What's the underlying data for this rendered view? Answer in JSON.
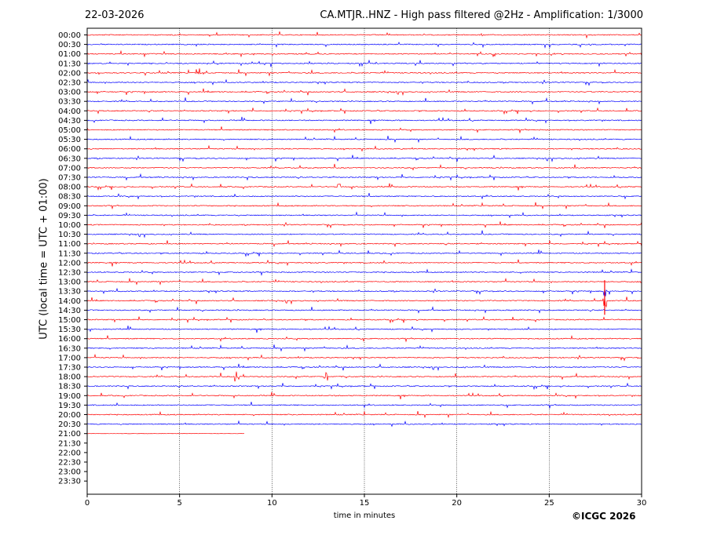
{
  "header": {
    "date": "22-03-2026",
    "title": "CA.MTJR..HNZ - High pass filtered @2Hz - Amplification: 1/3000"
  },
  "footer": {
    "copyright": "©ICGC 2026"
  },
  "colors": {
    "trace_red": "#ff0000",
    "trace_blue": "#0000ff",
    "axis": "#000000"
  },
  "chart_data": {
    "type": "helicorder",
    "title": "CA.MTJR..HNZ - High pass filtered @2Hz - Amplification: 1/3000",
    "xlabel": "time in minutes",
    "ylabel": "UTC (local time = UTC + 01:00)",
    "xlim": [
      0,
      30
    ],
    "x_ticks": [
      0,
      5,
      10,
      15,
      20,
      25,
      30
    ],
    "vertical_gridlines_at": [
      5,
      10,
      15,
      20,
      25
    ],
    "rows": [
      "00:00",
      "00:30",
      "01:00",
      "01:30",
      "02:00",
      "02:30",
      "03:00",
      "03:30",
      "04:00",
      "04:30",
      "05:00",
      "05:30",
      "06:00",
      "06:30",
      "07:00",
      "07:30",
      "08:00",
      "08:30",
      "09:00",
      "09:30",
      "10:00",
      "10:30",
      "11:00",
      "11:30",
      "12:00",
      "12:30",
      "13:00",
      "13:30",
      "14:00",
      "14:30",
      "15:00",
      "15:30",
      "16:00",
      "16:30",
      "17:00",
      "17:30",
      "18:00",
      "18:30",
      "19:00",
      "19:30",
      "20:00",
      "20:30",
      "21:00",
      "21:30",
      "22:00",
      "22:30",
      "23:00",
      "23:30"
    ],
    "trace_colors_alternate": [
      "red",
      "blue"
    ],
    "data_end": {
      "row": "21:00",
      "minute": 8.5
    },
    "notable_events": [
      {
        "row": "02:00",
        "minute": 6.0
      },
      {
        "row": "08:00",
        "minute": 13.6
      },
      {
        "row": "13:30",
        "minute": 28.0
      },
      {
        "row": "14:00",
        "minute": 28.0
      },
      {
        "row": "18:00",
        "minute": 8.1
      },
      {
        "row": "18:00",
        "minute": 12.9
      }
    ]
  }
}
